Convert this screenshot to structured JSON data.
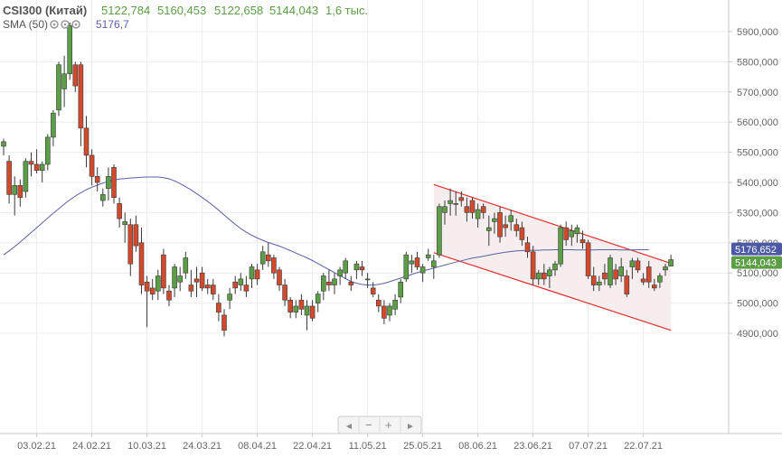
{
  "header": {
    "symbol": "CSI300 (Китай)",
    "open": "5122,784",
    "high": "5160,453",
    "low": "5122,658",
    "close": "5144,043",
    "volume": "1,6 тыс.",
    "indicator_name": "SMA (50)",
    "indicator_value": "5176,7"
  },
  "price_tags": {
    "sma": "5176,652",
    "last": "5144,043"
  },
  "nav": {
    "prev": "◄",
    "minus": "−",
    "plus": "+",
    "next": "►"
  },
  "colors": {
    "up": "#5c9e45",
    "down": "#d24a2e",
    "sma": "#5b5ea6",
    "channel": "#e0302a",
    "channel_fill": "#f6eeee",
    "grid": "#ececec",
    "sma_tag": "#4c5aa6",
    "last_tag": "#5c9e45"
  },
  "chart_data": {
    "type": "candlestick",
    "title": "CSI300 (Китай)",
    "y_range": [
      4860,
      5960
    ],
    "y_ticks": [
      "4900,000",
      "5000,000",
      "5100,000",
      "5200,000",
      "5300,000",
      "5400,000",
      "5500,000",
      "5600,000",
      "5700,000",
      "5800,000",
      "5900,000"
    ],
    "x_ticks": [
      {
        "label": "03.02.21",
        "index": 6
      },
      {
        "label": "24.02.21",
        "index": 16
      },
      {
        "label": "10.03.21",
        "index": 26
      },
      {
        "label": "24.03.21",
        "index": 36
      },
      {
        "label": "08.04.21",
        "index": 46
      },
      {
        "label": "22.04.21",
        "index": 56
      },
      {
        "label": "11.05.21",
        "index": 66
      },
      {
        "label": "25.05.21",
        "index": 76
      },
      {
        "label": "08.06.21",
        "index": 86
      },
      {
        "label": "23.06.21",
        "index": 96
      },
      {
        "label": "07.07.21",
        "index": 106
      },
      {
        "label": "22.07.21",
        "index": 116
      }
    ],
    "candles": [
      [
        5520,
        5545,
        5490,
        5535
      ],
      [
        5470,
        5490,
        5330,
        5360
      ],
      [
        5360,
        5420,
        5290,
        5390
      ],
      [
        5390,
        5410,
        5320,
        5350
      ],
      [
        5370,
        5480,
        5350,
        5470
      ],
      [
        5470,
        5500,
        5420,
        5460
      ],
      [
        5460,
        5510,
        5430,
        5440
      ],
      [
        5440,
        5470,
        5400,
        5460
      ],
      [
        5460,
        5560,
        5440,
        5550
      ],
      [
        5550,
        5640,
        5520,
        5630
      ],
      [
        5640,
        5800,
        5620,
        5790
      ],
      [
        5710,
        5820,
        5650,
        5760
      ],
      [
        5760,
        5930,
        5740,
        5920
      ],
      [
        5790,
        5800,
        5700,
        5720
      ],
      [
        5790,
        5800,
        5520,
        5580
      ],
      [
        5580,
        5620,
        5450,
        5490
      ],
      [
        5490,
        5510,
        5390,
        5420
      ],
      [
        5420,
        5450,
        5370,
        5400
      ],
      [
        5340,
        5380,
        5320,
        5360
      ],
      [
        5380,
        5450,
        5340,
        5420
      ],
      [
        5450,
        5460,
        5330,
        5350
      ],
      [
        5330,
        5350,
        5250,
        5280
      ],
      [
        5260,
        5300,
        5200,
        5270
      ],
      [
        5260,
        5280,
        5090,
        5130
      ],
      [
        5260,
        5290,
        5170,
        5190
      ],
      [
        5200,
        5250,
        5030,
        5060
      ],
      [
        5070,
        5090,
        4920,
        5040
      ],
      [
        5050,
        5080,
        5010,
        5030
      ],
      [
        5040,
        5110,
        5010,
        5090
      ],
      [
        5160,
        5180,
        5030,
        5050
      ],
      [
        5040,
        5060,
        4990,
        5010
      ],
      [
        5050,
        5130,
        5020,
        5120
      ],
      [
        5070,
        5120,
        5040,
        5090
      ],
      [
        5100,
        5170,
        5080,
        5150
      ],
      [
        5060,
        5110,
        5020,
        5040
      ],
      [
        5080,
        5120,
        5020,
        5070
      ],
      [
        5100,
        5120,
        5040,
        5050
      ],
      [
        5060,
        5080,
        5030,
        5050
      ],
      [
        5060,
        5080,
        5010,
        5030
      ],
      [
        5000,
        5030,
        4940,
        4970
      ],
      [
        4960,
        4980,
        4890,
        4910
      ],
      [
        5010,
        5050,
        4980,
        5030
      ],
      [
        5070,
        5090,
        5030,
        5050
      ],
      [
        5060,
        5100,
        5040,
        5080
      ],
      [
        5060,
        5090,
        5020,
        5040
      ],
      [
        5080,
        5130,
        5050,
        5120
      ],
      [
        5110,
        5130,
        5060,
        5080
      ],
      [
        5130,
        5190,
        5110,
        5170
      ],
      [
        5160,
        5200,
        5120,
        5140
      ],
      [
        5150,
        5160,
        5080,
        5100
      ],
      [
        5110,
        5120,
        5040,
        5060
      ],
      [
        5060,
        5080,
        4990,
        5010
      ],
      [
        5010,
        5020,
        4950,
        4970
      ],
      [
        4970,
        5010,
        4950,
        4990
      ],
      [
        5010,
        5030,
        4960,
        4980
      ],
      [
        4960,
        5010,
        4910,
        4990
      ],
      [
        4990,
        5010,
        4940,
        4950
      ],
      [
        5000,
        5040,
        4970,
        5030
      ],
      [
        5040,
        5100,
        5010,
        5090
      ],
      [
        5070,
        5110,
        5040,
        5060
      ],
      [
        5060,
        5100,
        5030,
        5080
      ],
      [
        5090,
        5120,
        5060,
        5110
      ],
      [
        5100,
        5150,
        5080,
        5140
      ],
      [
        5070,
        5090,
        5040,
        5060
      ],
      [
        5110,
        5140,
        5080,
        5130
      ],
      [
        5120,
        5140,
        5090,
        5110
      ],
      [
        5080,
        5100,
        5050,
        5080
      ],
      [
        5050,
        5070,
        5020,
        5030
      ],
      [
        5010,
        5030,
        4970,
        4990
      ],
      [
        4990,
        5010,
        4930,
        4950
      ],
      [
        4960,
        5000,
        4940,
        4990
      ],
      [
        4980,
        5030,
        4960,
        5010
      ],
      [
        5020,
        5080,
        5000,
        5070
      ],
      [
        5080,
        5170,
        5070,
        5160
      ],
      [
        5130,
        5160,
        5100,
        5140
      ],
      [
        5150,
        5170,
        5110,
        5120
      ],
      [
        5100,
        5130,
        5070,
        5120
      ],
      [
        5150,
        5180,
        5140,
        5160
      ],
      [
        5120,
        5160,
        5080,
        5140
      ],
      [
        5160,
        5330,
        5150,
        5320
      ],
      [
        5300,
        5340,
        5260,
        5320
      ],
      [
        5330,
        5380,
        5290,
        5340
      ],
      [
        5330,
        5370,
        5290,
        5330
      ],
      [
        5350,
        5370,
        5320,
        5340
      ],
      [
        5320,
        5350,
        5270,
        5300
      ],
      [
        5340,
        5350,
        5280,
        5300
      ],
      [
        5280,
        5330,
        5250,
        5310
      ],
      [
        5320,
        5330,
        5280,
        5300
      ],
      [
        5240,
        5290,
        5190,
        5250
      ],
      [
        5270,
        5300,
        5230,
        5280
      ],
      [
        5300,
        5320,
        5200,
        5220
      ],
      [
        5260,
        5290,
        5220,
        5250
      ],
      [
        5270,
        5310,
        5240,
        5290
      ],
      [
        5260,
        5280,
        5220,
        5240
      ],
      [
        5250,
        5270,
        5190,
        5210
      ],
      [
        5200,
        5220,
        5150,
        5170
      ],
      [
        5170,
        5190,
        5060,
        5080
      ],
      [
        5080,
        5110,
        5060,
        5100
      ],
      [
        5100,
        5130,
        5060,
        5080
      ],
      [
        5090,
        5120,
        5050,
        5110
      ],
      [
        5110,
        5140,
        5090,
        5130
      ],
      [
        5130,
        5260,
        5120,
        5250
      ],
      [
        5250,
        5270,
        5190,
        5210
      ],
      [
        5220,
        5260,
        5190,
        5240
      ],
      [
        5230,
        5260,
        5200,
        5250
      ],
      [
        5210,
        5240,
        5180,
        5200
      ],
      [
        5200,
        5210,
        5080,
        5090
      ],
      [
        5090,
        5120,
        5040,
        5060
      ],
      [
        5060,
        5090,
        5040,
        5070
      ],
      [
        5100,
        5130,
        5060,
        5080
      ],
      [
        5060,
        5160,
        5050,
        5150
      ],
      [
        5110,
        5130,
        5060,
        5080
      ],
      [
        5090,
        5150,
        5070,
        5120
      ],
      [
        5090,
        5110,
        5020,
        5030
      ],
      [
        5120,
        5150,
        5080,
        5140
      ],
      [
        5140,
        5150,
        5100,
        5110
      ],
      [
        5080,
        5100,
        5060,
        5070
      ],
      [
        5120,
        5140,
        5050,
        5070
      ],
      [
        5060,
        5080,
        5040,
        5050
      ],
      [
        5070,
        5100,
        5050,
        5090
      ],
      [
        5110,
        5130,
        5090,
        5120
      ],
      [
        5122.784,
        5160.453,
        5122.658,
        5144.043
      ]
    ],
    "sma": [
      5160,
      5173,
      5187,
      5202,
      5218,
      5234,
      5250,
      5266,
      5282,
      5298,
      5313,
      5328,
      5342,
      5355,
      5366,
      5376,
      5384,
      5391,
      5398,
      5404,
      5408,
      5411,
      5413,
      5415,
      5416,
      5417,
      5418,
      5418,
      5418,
      5416,
      5412,
      5405,
      5396,
      5386,
      5375,
      5363,
      5350,
      5337,
      5323,
      5308,
      5292,
      5276,
      5261,
      5247,
      5235,
      5225,
      5216,
      5208,
      5201,
      5195,
      5189,
      5182,
      5174,
      5166,
      5158,
      5150,
      5141,
      5131,
      5121,
      5111,
      5101,
      5091,
      5081,
      5072,
      5066,
      5062,
      5060,
      5060,
      5062,
      5066,
      5071,
      5077,
      5083,
      5089,
      5095,
      5101,
      5106,
      5111,
      5116,
      5121,
      5126,
      5131,
      5136,
      5140,
      5145,
      5149,
      5152,
      5155,
      5159,
      5163,
      5166,
      5169,
      5171,
      5173,
      5174,
      5175,
      5175,
      5175,
      5176,
      5176,
      5177,
      5177,
      5177,
      5177,
      5176,
      5176,
      5176,
      5176,
      5177,
      5177,
      5177,
      5177,
      5176,
      5176,
      5176,
      5177,
      5177,
      5176.652
    ],
    "channel": {
      "upper": [
        {
          "index": 78,
          "value": 5393
        },
        {
          "index": 121,
          "value": 5132
        }
      ],
      "lower": [
        {
          "index": 78,
          "value": 5167
        },
        {
          "index": 121,
          "value": 4910
        }
      ]
    },
    "sma_period": 50,
    "last_value": 5144.043,
    "last_sma": 5176.652
  }
}
